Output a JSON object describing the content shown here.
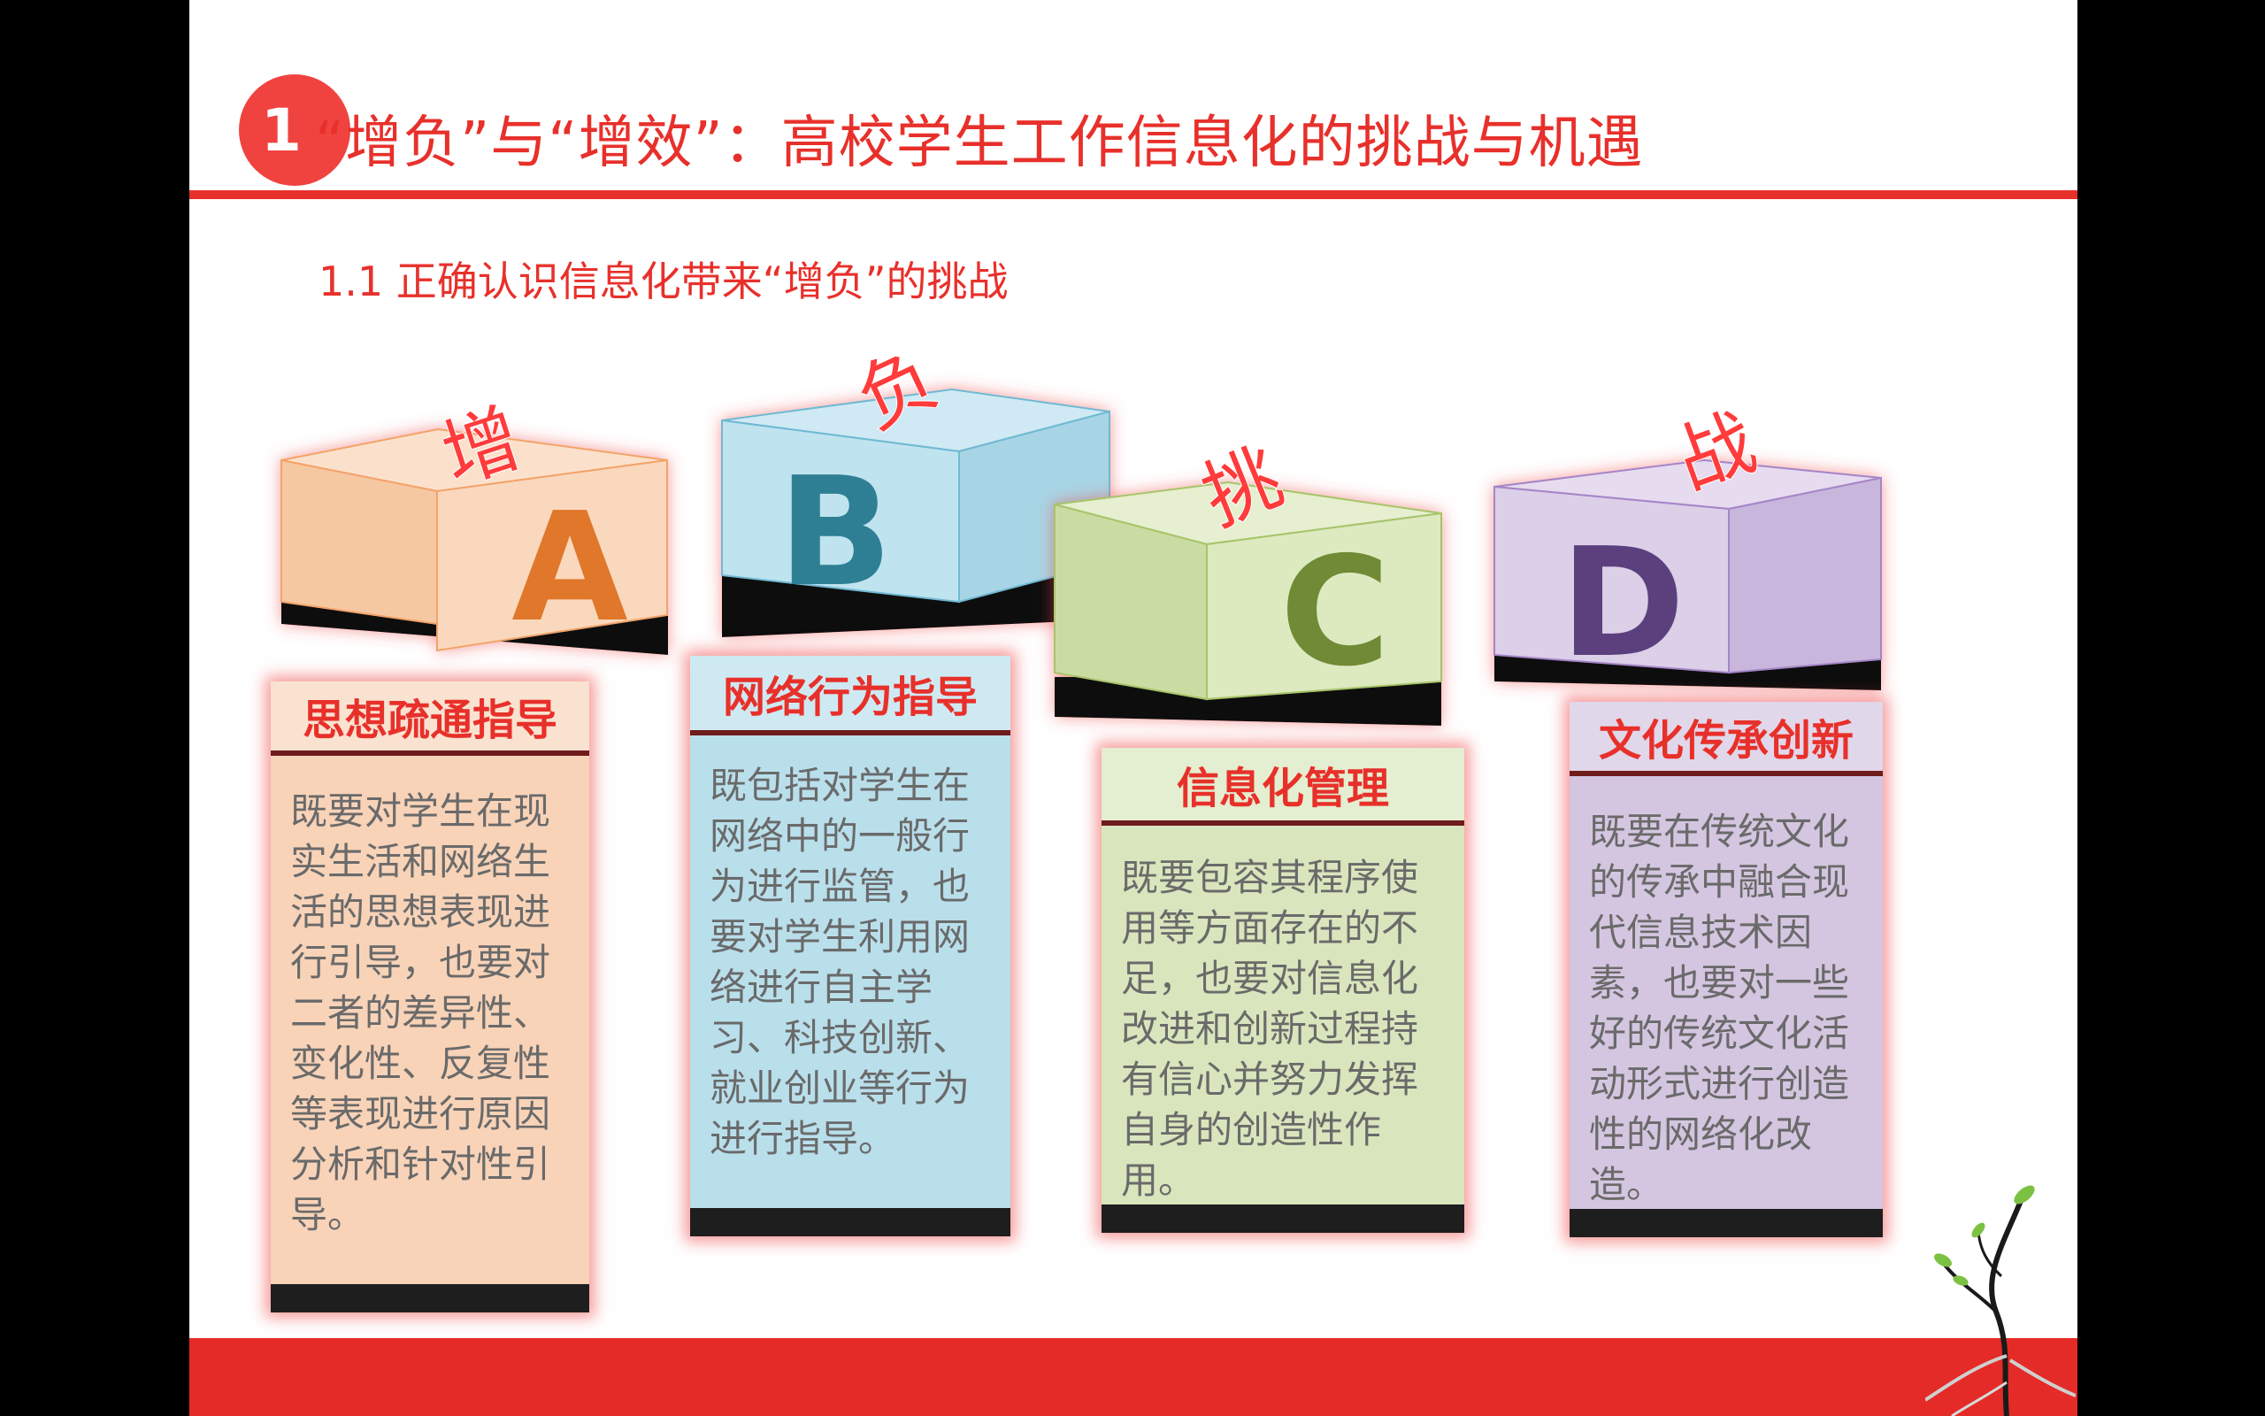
{
  "slide": {
    "section_number": "1",
    "title": "“增负”与“增效”：高校学生工作信息化的挑战与机遇",
    "subtitle": "1.1 正确认识信息化带来“增负”的挑战"
  },
  "cubes": [
    {
      "letter": "A",
      "char": "增",
      "color_top": "#fbe1cc",
      "color_front": "#fad8bd",
      "color_side": "#f6c8a2",
      "color_letter": "#e0772a"
    },
    {
      "letter": "B",
      "char": "负",
      "color_top": "#cfeaf4",
      "color_front": "#bfe3ef",
      "color_side": "#a8d5e5",
      "color_letter": "#2f7f94"
    },
    {
      "letter": "C",
      "char": "挑",
      "color_top": "#e6efcf",
      "color_front": "#dde9bf",
      "color_side": "#cbdca3",
      "color_letter": "#6f8a35"
    },
    {
      "letter": "D",
      "char": "战",
      "color_top": "#e6dbef",
      "color_front": "#dccfe8",
      "color_side": "#c9b6dc",
      "color_letter": "#5c3f7e"
    }
  ],
  "cards": [
    {
      "title": "思想疏通指导",
      "body": "既要对学生在现实生活和网络生活的思想表现进行引导，也要对二者的差异性、变化性、反复性等表现进行原因分析和针对性引导。",
      "bg": "#f8d3b8",
      "head_bg": "#fae2d0"
    },
    {
      "title": "网络行为指导",
      "body": "既包括对学生在网络中的一般行为进行监管，也要对学生利用网络进行自主学习、科技创新、就业创业等行为进行指导。",
      "bg": "#b9dfeb",
      "head_bg": "#cfe9f2"
    },
    {
      "title": "信息化管理",
      "body": "既要包容其程序使用等方面存在的不足，也要对信息化改进和创新过程持有信心并努力发挥自身的创造性作用。",
      "bg": "#d9e6bd",
      "head_bg": "#e4eed0"
    },
    {
      "title": "文化传承创新",
      "body": "既要在传统文化的传承中融合现代信息技术因素，也要对一些好的传统文化活动形式进行创造性的网络化改造。",
      "bg": "#d4c6e0",
      "head_bg": "#e1d7ea"
    }
  ],
  "colors": {
    "accent": "#e8302b",
    "footer": "#e42b27"
  }
}
